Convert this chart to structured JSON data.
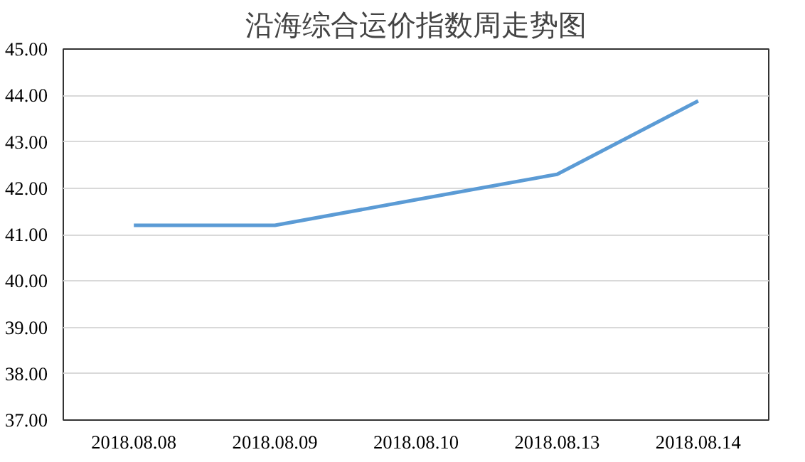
{
  "chart_data": {
    "type": "line",
    "title": "沿海综合运价指数周走势图",
    "categories": [
      "2018.08.08",
      "2018.08.09",
      "2018.08.10",
      "2018.08.13",
      "2018.08.14"
    ],
    "series": [
      {
        "color": "#5b9bd5",
        "values": [
          41.2,
          41.2,
          41.75,
          42.3,
          43.88
        ]
      }
    ],
    "ylim": [
      37,
      45
    ],
    "yticks": [
      {
        "value": 37,
        "label": "37.00"
      },
      {
        "value": 38,
        "label": "38.00"
      },
      {
        "value": 39,
        "label": "39.00"
      },
      {
        "value": 40,
        "label": "40.00"
      },
      {
        "value": 41,
        "label": "41.00"
      },
      {
        "value": 42,
        "label": "42.00"
      },
      {
        "value": 43,
        "label": "43.00"
      },
      {
        "value": 44,
        "label": "44.00"
      },
      {
        "value": 45,
        "label": "45.00"
      }
    ],
    "grid": "y",
    "marker": "none",
    "line_style": "solid"
  }
}
